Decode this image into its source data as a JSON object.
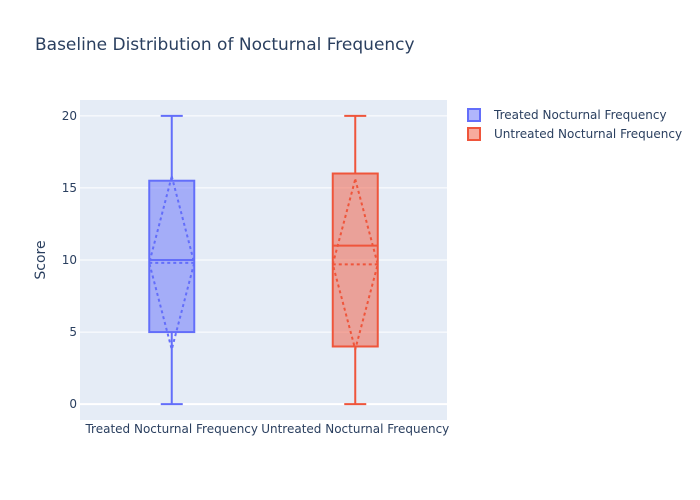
{
  "chart_data": {
    "type": "box",
    "title": "Baseline Distribution of Nocturnal Frequency",
    "xlabel": "",
    "ylabel": "Score",
    "categories": [
      "Treated Nocturnal Frequency",
      "Untreated Nocturnal Frequency"
    ],
    "ylim": [
      -1.1,
      21.1
    ],
    "yticks": [
      0,
      5,
      10,
      15,
      20
    ],
    "grid": true,
    "legend_position": "top-right",
    "series": [
      {
        "name": "Treated Nocturnal Frequency",
        "color": "#636efa",
        "fill": "rgba(99,110,250,0.5)",
        "min": 0,
        "q1": 5,
        "median": 10,
        "q3": 15.5,
        "max": 20,
        "mean": 9.8,
        "sd_low": 3.8,
        "sd_high": 15.8
      },
      {
        "name": "Untreated Nocturnal Frequency",
        "color": "#ef553b",
        "fill": "rgba(239,85,59,0.5)",
        "min": 0,
        "q1": 4,
        "median": 11,
        "q3": 16,
        "max": 20,
        "mean": 9.7,
        "sd_low": 3.8,
        "sd_high": 15.6
      }
    ]
  }
}
